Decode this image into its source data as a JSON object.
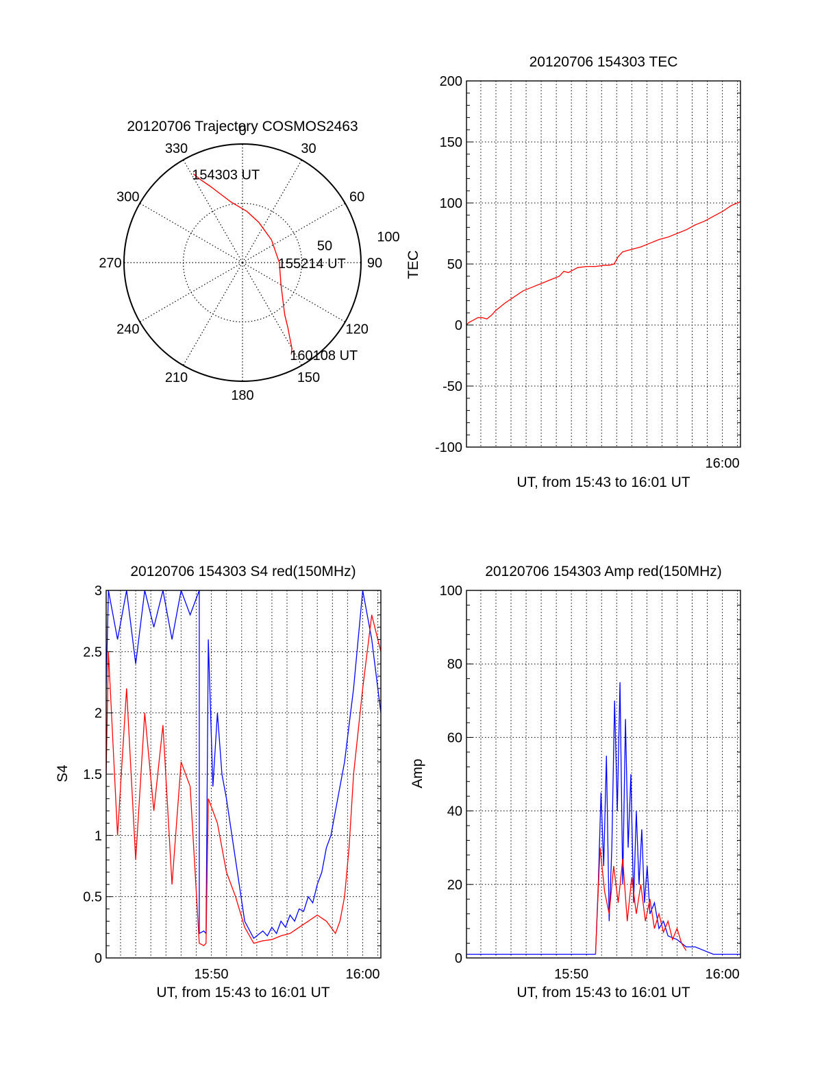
{
  "colors": {
    "red": "#ff0000",
    "blue": "#0000ff",
    "axis": "#000000",
    "grid": "#000000",
    "background": "#ffffff"
  },
  "chart_data": [
    {
      "id": "polar",
      "type": "polar",
      "title": "20120706 Trajectory COSMOS2463",
      "angle_labels": [
        "0",
        "30",
        "60",
        "90",
        "120",
        "150",
        "180",
        "210",
        "240",
        "270",
        "300",
        "330"
      ],
      "radius_labels": [
        "50",
        "100"
      ],
      "rlim": [
        0,
        100
      ],
      "grid": true,
      "series": [
        {
          "color": "#ff0000",
          "points": [
            {
              "az": 331,
              "el": 13
            },
            {
              "az": 333,
              "el": 19
            },
            {
              "az": 337,
              "el": 27
            },
            {
              "az": 342,
              "el": 35
            },
            {
              "az": 349,
              "el": 43
            },
            {
              "az": 5,
              "el": 51
            },
            {
              "az": 22,
              "el": 57
            },
            {
              "az": 52,
              "el": 62
            },
            {
              "az": 90,
              "el": 62
            },
            {
              "az": 118,
              "el": 57
            },
            {
              "az": 133,
              "el": 48
            },
            {
              "az": 141,
              "el": 39
            },
            {
              "az": 145,
              "el": 30
            },
            {
              "az": 148,
              "el": 22
            },
            {
              "az": 150,
              "el": 15
            },
            {
              "az": 152,
              "el": 11
            }
          ]
        }
      ],
      "annotations": [
        {
          "text": "154303 UT",
          "az": 331,
          "el": 13
        },
        {
          "text": "155214 UT",
          "az": 90,
          "el": 62
        },
        {
          "text": "160108 UT",
          "az": 152,
          "el": 11
        }
      ]
    },
    {
      "id": "tec",
      "type": "line",
      "title": "20120706 154303 TEC",
      "xlabel": "UT, from 15:43 to 16:01 UT",
      "ylabel": "TEC",
      "xlim": [
        15.7175,
        16.02
      ],
      "ylim": [
        -100,
        200
      ],
      "yticks": [
        -100,
        -50,
        0,
        50,
        100,
        150,
        200
      ],
      "xtick_labels": [
        {
          "label": "16:00",
          "value": 16.0
        }
      ],
      "grid": true,
      "series": [
        {
          "color": "#ff0000",
          "x": [
            15.7175,
            15.72,
            15.725,
            15.73,
            15.735,
            15.74,
            15.745,
            15.75,
            15.76,
            15.77,
            15.78,
            15.79,
            15.8,
            15.81,
            15.82,
            15.825,
            15.83,
            15.835,
            15.84,
            15.85,
            15.86,
            15.87,
            15.875,
            15.8805,
            15.885,
            15.89,
            15.9,
            15.91,
            15.92,
            15.93,
            15.94,
            15.95,
            15.96,
            15.97,
            15.98,
            15.99,
            16.0,
            16.01,
            16.02
          ],
          "y": [
            0,
            2,
            4,
            6,
            6,
            5,
            8,
            12,
            18,
            23,
            28,
            31,
            34,
            37,
            40,
            44,
            43,
            45,
            47,
            48,
            48,
            49,
            49,
            50,
            56,
            60,
            62,
            64,
            67,
            70,
            72,
            75,
            78,
            82,
            85,
            89,
            93,
            98,
            101
          ]
        }
      ]
    },
    {
      "id": "s4",
      "type": "line",
      "title": "20120706 154303 S4 red(150MHz)",
      "xlabel": "UT, from 15:43 to 16:01 UT",
      "ylabel": "S4",
      "xlim": [
        15.7175,
        16.02
      ],
      "ylim": [
        0,
        3
      ],
      "yticks": [
        0,
        0.5,
        1,
        1.5,
        2,
        2.5,
        3
      ],
      "xtick_labels": [
        {
          "label": "15:50",
          "value": 15.8333
        },
        {
          "label": "16:00",
          "value": 16.0
        }
      ],
      "grid": true,
      "series": [
        {
          "color": "#0000ff",
          "x": [
            15.7175,
            15.72,
            15.73,
            15.74,
            15.75,
            15.76,
            15.77,
            15.78,
            15.79,
            15.8,
            15.81,
            15.82,
            15.82,
            15.825,
            15.8275,
            15.83,
            15.835,
            15.84,
            15.845,
            15.85,
            15.86,
            15.87,
            15.88,
            15.89,
            15.895,
            15.9,
            15.905,
            15.91,
            15.915,
            15.92,
            15.925,
            15.93,
            15.935,
            15.94,
            15.945,
            15.95,
            15.955,
            15.96,
            15.965,
            15.97,
            15.98,
            15.99,
            16.0,
            16.01,
            16.02
          ],
          "y": [
            2.2,
            3.0,
            2.6,
            3.0,
            2.4,
            3.0,
            2.7,
            3.0,
            2.6,
            3.0,
            2.8,
            3.0,
            0.2,
            0.22,
            0.2,
            2.6,
            1.4,
            2.0,
            1.5,
            1.3,
            0.8,
            0.3,
            0.16,
            0.22,
            0.18,
            0.25,
            0.2,
            0.3,
            0.25,
            0.35,
            0.3,
            0.4,
            0.38,
            0.5,
            0.45,
            0.6,
            0.7,
            0.9,
            1.0,
            1.2,
            1.6,
            2.2,
            3.0,
            2.6,
            2.0
          ]
        },
        {
          "color": "#ff0000",
          "x": [
            15.7175,
            15.72,
            15.73,
            15.74,
            15.75,
            15.76,
            15.77,
            15.78,
            15.79,
            15.8,
            15.81,
            15.82,
            15.825,
            15.8275,
            15.83,
            15.835,
            15.84,
            15.845,
            15.85,
            15.86,
            15.87,
            15.88,
            15.89,
            15.9,
            15.91,
            15.92,
            15.93,
            15.94,
            15.95,
            15.96,
            15.965,
            15.97,
            15.975,
            15.98,
            15.985,
            15.99,
            16.0,
            16.01,
            16.02
          ],
          "y": [
            1.5,
            2.5,
            1.0,
            2.2,
            0.8,
            2.0,
            1.2,
            1.9,
            0.6,
            1.6,
            1.4,
            0.12,
            0.1,
            0.12,
            1.3,
            1.2,
            1.1,
            0.9,
            0.7,
            0.5,
            0.25,
            0.12,
            0.14,
            0.15,
            0.18,
            0.2,
            0.25,
            0.3,
            0.35,
            0.3,
            0.25,
            0.2,
            0.3,
            0.5,
            0.9,
            1.5,
            2.2,
            2.8,
            2.5
          ]
        }
      ]
    },
    {
      "id": "amp",
      "type": "line",
      "title": "20120706 154303 Amp red(150MHz)",
      "xlabel": "UT, from 15:43 to 16:01 UT",
      "ylabel": "Amp",
      "xlim": [
        15.7175,
        16.02
      ],
      "ylim": [
        0,
        100
      ],
      "yticks": [
        0,
        20,
        40,
        60,
        80,
        100
      ],
      "xtick_labels": [
        {
          "label": "15:50",
          "value": 15.8333
        },
        {
          "label": "16:00",
          "value": 16.0
        }
      ],
      "grid": true,
      "series": [
        {
          "color": "#0000ff",
          "x": [
            15.7175,
            15.74,
            15.76,
            15.78,
            15.8,
            15.82,
            15.84,
            15.86,
            15.863,
            15.866,
            15.869,
            15.872,
            15.875,
            15.878,
            15.881,
            15.884,
            15.887,
            15.89,
            15.893,
            15.896,
            15.899,
            15.902,
            15.905,
            15.908,
            15.911,
            15.914,
            15.917,
            15.92,
            15.925,
            15.93,
            15.935,
            15.94,
            15.95,
            15.96,
            15.97,
            15.98,
            15.99,
            16.0,
            16.01,
            16.02
          ],
          "y": [
            1,
            1,
            1,
            1,
            1,
            1,
            1,
            1,
            20,
            45,
            25,
            55,
            10,
            30,
            70,
            40,
            75,
            20,
            65,
            30,
            50,
            15,
            40,
            20,
            35,
            15,
            25,
            12,
            15,
            8,
            10,
            6,
            5,
            3,
            3,
            2,
            1,
            1,
            1,
            1
          ]
        },
        {
          "color": "#ff0000",
          "x": [
            15.86,
            15.865,
            15.87,
            15.875,
            15.88,
            15.885,
            15.89,
            15.895,
            15.9,
            15.905,
            15.91,
            15.915,
            15.92,
            15.925,
            15.93,
            15.935,
            15.94,
            15.945,
            15.95,
            15.955,
            15.96
          ],
          "y": [
            1,
            30,
            18,
            12,
            25,
            15,
            27,
            10,
            22,
            12,
            20,
            10,
            16,
            8,
            12,
            7,
            10,
            5,
            8,
            4,
            2
          ]
        }
      ]
    }
  ]
}
